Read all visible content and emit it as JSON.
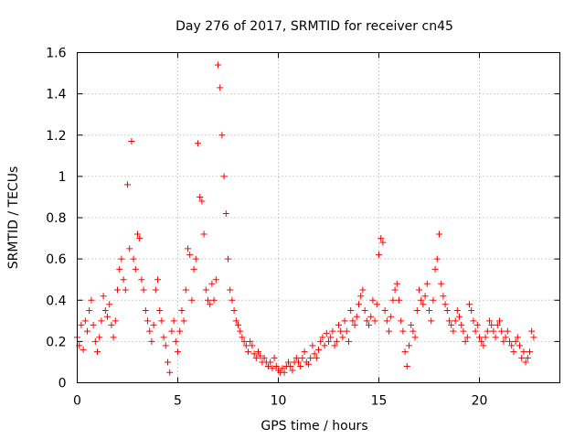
{
  "chart_data": {
    "type": "scatter",
    "title": "Day 276 of 2017, SRMTID for receiver cn45",
    "xlabel": "GPS time / hours",
    "ylabel": "SRMTID / TECUs",
    "xlim": [
      0,
      24
    ],
    "ylim": [
      0,
      1.6
    ],
    "xticks": [
      0,
      5,
      10,
      15,
      20
    ],
    "xtick_labels": [
      "0",
      "5",
      "10",
      "15",
      "20"
    ],
    "yticks": [
      0,
      0.2,
      0.4,
      0.6,
      0.8,
      1.0,
      1.2,
      1.4,
      1.6
    ],
    "ytick_labels": [
      "0",
      "0.2",
      "0.4",
      "0.6",
      "0.8",
      "1",
      "1.2",
      "1.4",
      "1.6"
    ],
    "grid": true,
    "marker": "plus",
    "color": "#ff0000",
    "series": [
      {
        "name": "SRMTID",
        "x": [
          0.0,
          0.1,
          0.2,
          0.3,
          0.4,
          0.5,
          0.6,
          0.7,
          0.8,
          0.9,
          1.0,
          1.1,
          1.2,
          1.3,
          1.4,
          1.5,
          1.6,
          1.7,
          1.8,
          1.9,
          2.0,
          2.1,
          2.2,
          2.3,
          2.4,
          2.5,
          2.6,
          2.7,
          2.8,
          2.9,
          3.0,
          3.1,
          3.2,
          3.3,
          3.4,
          3.5,
          3.6,
          3.7,
          3.8,
          3.9,
          4.0,
          4.1,
          4.2,
          4.3,
          4.4,
          4.5,
          4.6,
          4.7,
          4.8,
          4.9,
          5.0,
          5.1,
          5.2,
          5.3,
          5.4,
          5.5,
          5.6,
          5.7,
          5.8,
          5.9,
          6.0,
          6.1,
          6.2,
          6.3,
          6.4,
          6.5,
          6.6,
          6.7,
          6.8,
          6.9,
          7.0,
          7.1,
          7.2,
          7.3,
          7.4,
          7.5,
          7.6,
          7.7,
          7.8,
          7.9,
          8.0,
          8.1,
          8.2,
          8.3,
          8.4,
          8.5,
          8.6,
          8.7,
          8.8,
          8.9,
          9.0,
          9.1,
          9.2,
          9.3,
          9.4,
          9.5,
          9.6,
          9.7,
          9.8,
          9.9,
          10.0,
          10.1,
          10.2,
          10.3,
          10.4,
          10.5,
          10.6,
          10.7,
          10.8,
          10.9,
          11.0,
          11.1,
          11.2,
          11.3,
          11.4,
          11.5,
          11.6,
          11.7,
          11.8,
          11.9,
          12.0,
          12.1,
          12.2,
          12.3,
          12.4,
          12.5,
          12.6,
          12.7,
          12.8,
          12.9,
          13.0,
          13.1,
          13.2,
          13.3,
          13.4,
          13.5,
          13.6,
          13.7,
          13.8,
          13.9,
          14.0,
          14.1,
          14.2,
          14.3,
          14.4,
          14.5,
          14.6,
          14.7,
          14.8,
          14.9,
          15.0,
          15.1,
          15.2,
          15.3,
          15.4,
          15.5,
          15.6,
          15.7,
          15.8,
          15.9,
          16.0,
          16.1,
          16.2,
          16.3,
          16.4,
          16.5,
          16.6,
          16.7,
          16.8,
          16.9,
          17.0,
          17.1,
          17.2,
          17.3,
          17.4,
          17.5,
          17.6,
          17.7,
          17.8,
          17.9,
          18.0,
          18.1,
          18.2,
          18.3,
          18.4,
          18.5,
          18.6,
          18.7,
          18.8,
          18.9,
          19.0,
          19.1,
          19.2,
          19.3,
          19.4,
          19.5,
          19.6,
          19.7,
          19.8,
          19.9,
          20.0,
          20.1,
          20.2,
          20.3,
          20.4,
          20.5,
          20.6,
          20.7,
          20.8,
          20.9,
          21.0,
          21.1,
          21.2,
          21.3,
          21.4,
          21.5,
          21.6,
          21.7,
          21.8,
          21.9,
          22.0,
          22.1,
          22.2,
          22.3,
          22.4,
          22.5,
          22.6,
          22.7
        ],
        "y": [
          0.22,
          0.18,
          0.28,
          0.16,
          0.3,
          0.25,
          0.35,
          0.4,
          0.28,
          0.2,
          0.15,
          0.22,
          0.3,
          0.42,
          0.35,
          0.32,
          0.38,
          0.28,
          0.22,
          0.3,
          0.45,
          0.55,
          0.6,
          0.5,
          0.45,
          0.96,
          0.65,
          1.17,
          0.6,
          0.55,
          0.72,
          0.7,
          0.5,
          0.45,
          0.35,
          0.3,
          0.25,
          0.2,
          0.28,
          0.45,
          0.5,
          0.35,
          0.3,
          0.22,
          0.18,
          0.1,
          0.05,
          0.25,
          0.3,
          0.2,
          0.15,
          0.25,
          0.35,
          0.3,
          0.45,
          0.65,
          0.62,
          0.4,
          0.55,
          0.6,
          1.16,
          0.9,
          0.88,
          0.72,
          0.45,
          0.4,
          0.38,
          0.48,
          0.4,
          0.5,
          1.54,
          1.43,
          1.2,
          1.0,
          0.82,
          0.6,
          0.45,
          0.4,
          0.35,
          0.3,
          0.28,
          0.25,
          0.22,
          0.2,
          0.18,
          0.15,
          0.2,
          0.18,
          0.14,
          0.12,
          0.15,
          0.13,
          0.1,
          0.12,
          0.1,
          0.08,
          0.1,
          0.07,
          0.12,
          0.08,
          0.06,
          0.05,
          0.07,
          0.05,
          0.08,
          0.1,
          0.08,
          0.06,
          0.1,
          0.12,
          0.1,
          0.08,
          0.12,
          0.15,
          0.1,
          0.09,
          0.12,
          0.18,
          0.14,
          0.12,
          0.16,
          0.2,
          0.22,
          0.18,
          0.24,
          0.2,
          0.22,
          0.25,
          0.18,
          0.2,
          0.28,
          0.25,
          0.22,
          0.3,
          0.25,
          0.2,
          0.35,
          0.3,
          0.28,
          0.32,
          0.38,
          0.42,
          0.45,
          0.35,
          0.3,
          0.28,
          0.32,
          0.4,
          0.3,
          0.38,
          0.62,
          0.7,
          0.68,
          0.35,
          0.3,
          0.25,
          0.32,
          0.4,
          0.45,
          0.48,
          0.4,
          0.3,
          0.25,
          0.15,
          0.08,
          0.18,
          0.28,
          0.25,
          0.22,
          0.35,
          0.45,
          0.4,
          0.38,
          0.42,
          0.48,
          0.35,
          0.3,
          0.4,
          0.55,
          0.6,
          0.72,
          0.48,
          0.42,
          0.38,
          0.35,
          0.3,
          0.28,
          0.25,
          0.3,
          0.35,
          0.32,
          0.28,
          0.25,
          0.2,
          0.22,
          0.38,
          0.35,
          0.3,
          0.25,
          0.28,
          0.22,
          0.2,
          0.18,
          0.22,
          0.25,
          0.3,
          0.28,
          0.25,
          0.22,
          0.28,
          0.3,
          0.25,
          0.2,
          0.22,
          0.25,
          0.2,
          0.18,
          0.15,
          0.2,
          0.22,
          0.18,
          0.12,
          0.15,
          0.1,
          0.12,
          0.15,
          0.25,
          0.22
        ]
      }
    ]
  }
}
